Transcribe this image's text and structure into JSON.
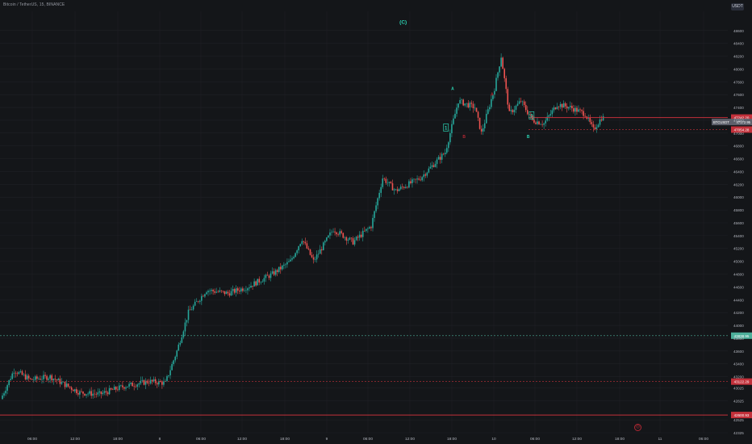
{
  "header": {
    "symbol": "Bitcoin / TetherUS, 15, BINANCE",
    "currency": "USDT"
  },
  "colors": {
    "background": "#141619",
    "up": "#26a69a",
    "down": "#ef5350",
    "grid": "#1f2126",
    "axis_text": "#b2b5be",
    "wave_green": "#2bd3b2",
    "wave_red": "#b22833",
    "hline_green": "#4caf9a",
    "hline_red": "#c2303a"
  },
  "chart_data": {
    "type": "candlestick",
    "title": "Bitcoin / TetherUS, 15, BINANCE",
    "xlabel": "",
    "ylabel": "",
    "ylim": [
      42325,
      48900
    ],
    "y_ticks": [
      48600,
      48400,
      48200,
      48000,
      47800,
      47600,
      47400,
      47200,
      47000,
      46800,
      46600,
      46400,
      46200,
      46000,
      45800,
      45600,
      45400,
      45200,
      45000,
      44800,
      44600,
      44400,
      44200,
      44000,
      43800,
      43600,
      43400,
      43200,
      43025,
      42825,
      42525,
      42325
    ],
    "x_ticks": [
      "06:00",
      "12:00",
      "18:00",
      "8",
      "06:00",
      "12:00",
      "18:00",
      "9",
      "06:00",
      "12:00",
      "18:00",
      "10",
      "06:00",
      "12:00",
      "18:00",
      "11",
      "06:00"
    ],
    "grid": true,
    "key_points": [
      {
        "t": 0,
        "v": 42850
      },
      {
        "t": 8,
        "v": 43300
      },
      {
        "t": 18,
        "v": 43150
      },
      {
        "t": 30,
        "v": 43200
      },
      {
        "t": 48,
        "v": 42950
      },
      {
        "t": 60,
        "v": 42925
      },
      {
        "t": 75,
        "v": 43050
      },
      {
        "t": 90,
        "v": 43125
      },
      {
        "t": 100,
        "v": 43100
      },
      {
        "t": 107,
        "v": 43600
      },
      {
        "t": 114,
        "v": 44200
      },
      {
        "t": 125,
        "v": 44550
      },
      {
        "t": 138,
        "v": 44500
      },
      {
        "t": 150,
        "v": 44600
      },
      {
        "t": 165,
        "v": 44800
      },
      {
        "t": 176,
        "v": 45000
      },
      {
        "t": 183,
        "v": 45350
      },
      {
        "t": 190,
        "v": 45000
      },
      {
        "t": 202,
        "v": 45500
      },
      {
        "t": 214,
        "v": 45300
      },
      {
        "t": 225,
        "v": 45550
      },
      {
        "t": 232,
        "v": 46300
      },
      {
        "t": 240,
        "v": 46100
      },
      {
        "t": 255,
        "v": 46300
      },
      {
        "t": 270,
        "v": 46700
      },
      {
        "t": 278,
        "v": 47500
      },
      {
        "t": 288,
        "v": 47400
      },
      {
        "t": 292,
        "v": 47000
      },
      {
        "t": 300,
        "v": 47700
      },
      {
        "t": 304,
        "v": 48200
      },
      {
        "t": 309,
        "v": 47300
      },
      {
        "t": 316,
        "v": 47500
      },
      {
        "t": 323,
        "v": 47200
      },
      {
        "t": 330,
        "v": 47150
      },
      {
        "t": 338,
        "v": 47450
      },
      {
        "t": 346,
        "v": 47400
      },
      {
        "t": 355,
        "v": 47300
      },
      {
        "t": 360,
        "v": 47050
      },
      {
        "t": 365,
        "v": 47240
      }
    ],
    "horizontal_lines": [
      {
        "value": 47242.2,
        "label": "47242.20",
        "color": "red",
        "style": "solid"
      },
      {
        "value": 47054.28,
        "label": "47054.28",
        "color": "red",
        "style": "dashed"
      },
      {
        "value": 43838.95,
        "label": "43838.95",
        "color": "green",
        "style": "dashed"
      },
      {
        "value": 43122.29,
        "label": "43122.29",
        "color": "red",
        "style": "dashed"
      },
      {
        "value": 42600.93,
        "label": "42600.93",
        "color": "red",
        "style": "solid"
      }
    ],
    "price_tag": {
      "label": "BTCUSDT",
      "value": "47172.95"
    },
    "wave_labels": [
      {
        "text": "(C)",
        "t": 242,
        "v": 48730,
        "color": "green",
        "boxed": false
      },
      {
        "text": "1",
        "t": 268,
        "v": 47080,
        "color": "green",
        "boxed": true
      },
      {
        "text": "A",
        "t": 272,
        "v": 47700,
        "color": "green",
        "boxed": false
      },
      {
        "text": "B",
        "t": 279,
        "v": 46950,
        "color": "red",
        "boxed": false
      },
      {
        "text": "A",
        "t": 296,
        "v": 47610,
        "color": "red",
        "boxed": false
      },
      {
        "text": "B",
        "t": 318,
        "v": 46950,
        "color": "green",
        "boxed": false
      },
      {
        "text": "2",
        "t": 320,
        "v": 47270,
        "color": "green",
        "boxed": true
      }
    ]
  }
}
